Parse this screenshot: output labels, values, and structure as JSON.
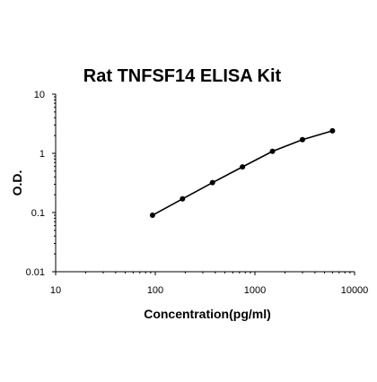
{
  "chart_data": {
    "type": "line",
    "title": "Rat TNFSF14 ELISA Kit",
    "xlabel": "Concentration(pg/ml)",
    "ylabel": "O.D.",
    "x_scale": "log",
    "y_scale": "log",
    "xlim": [
      10,
      10000
    ],
    "ylim": [
      0.01,
      10
    ],
    "x_ticks": [
      "10",
      "100",
      "1000",
      "10000"
    ],
    "y_ticks": [
      "0.01",
      "0.1",
      "1",
      "10"
    ],
    "grid": false,
    "legend": "none",
    "series": [
      {
        "x": [
          93.75,
          187.5,
          375,
          750,
          1500,
          3000,
          6000
        ],
        "y": [
          0.09,
          0.17,
          0.32,
          0.59,
          1.08,
          1.7,
          2.4
        ]
      }
    ],
    "colors": {
      "line": "#000000",
      "point": "#000000"
    }
  }
}
